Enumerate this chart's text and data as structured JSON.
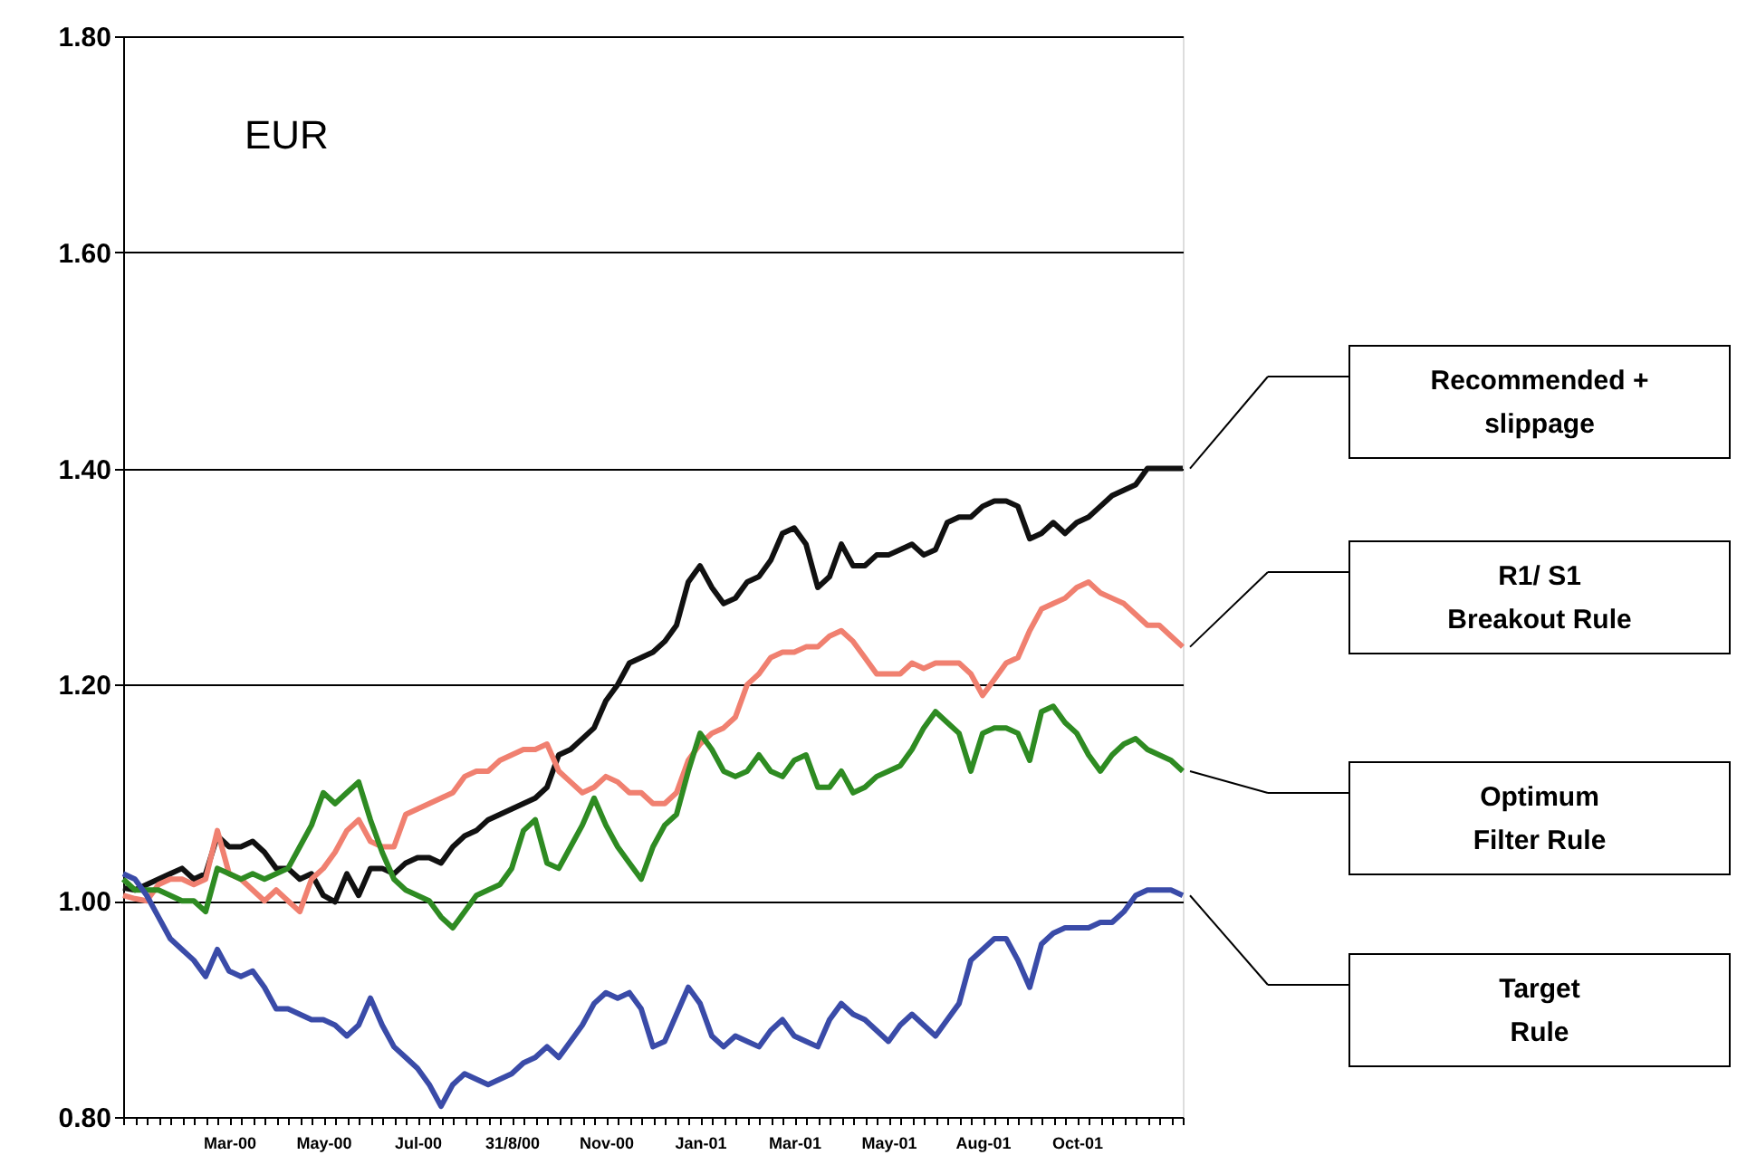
{
  "chart_data": {
    "type": "line",
    "title": "EUR",
    "categories": [
      null,
      null,
      null,
      null,
      null,
      null,
      null,
      null,
      null,
      "Mar-00",
      null,
      null,
      null,
      null,
      null,
      null,
      null,
      "May-00",
      null,
      null,
      null,
      null,
      null,
      null,
      null,
      "Jul-00",
      null,
      null,
      null,
      null,
      null,
      null,
      null,
      "31/8/00",
      null,
      null,
      null,
      null,
      null,
      null,
      null,
      "Nov-00",
      null,
      null,
      null,
      null,
      null,
      null,
      null,
      "Jan-01",
      null,
      null,
      null,
      null,
      null,
      null,
      null,
      "Mar-01",
      null,
      null,
      null,
      null,
      null,
      null,
      null,
      "May-01",
      null,
      null,
      null,
      null,
      null,
      null,
      null,
      "Aug-01",
      null,
      null,
      null,
      null,
      null,
      null,
      null,
      "Oct-01",
      null,
      null,
      null,
      null,
      null,
      null,
      null,
      null,
      null
    ],
    "series": [
      {
        "name": "Recommended +\nslippage",
        "color": "#111111",
        "values": [
          1.012,
          1.01,
          1.015,
          1.02,
          1.025,
          1.03,
          1.02,
          1.025,
          1.06,
          1.05,
          1.05,
          1.055,
          1.045,
          1.03,
          1.03,
          1.02,
          1.025,
          1.005,
          0.999,
          1.025,
          1.005,
          1.03,
          1.03,
          1.025,
          1.035,
          1.04,
          1.04,
          1.035,
          1.05,
          1.06,
          1.065,
          1.075,
          1.08,
          1.085,
          1.09,
          1.095,
          1.105,
          1.135,
          1.14,
          1.15,
          1.16,
          1.185,
          1.2,
          1.22,
          1.225,
          1.23,
          1.24,
          1.255,
          1.295,
          1.31,
          1.29,
          1.275,
          1.28,
          1.295,
          1.3,
          1.315,
          1.34,
          1.345,
          1.33,
          1.29,
          1.3,
          1.33,
          1.31,
          1.31,
          1.32,
          1.32,
          1.325,
          1.33,
          1.32,
          1.325,
          1.35,
          1.355,
          1.355,
          1.365,
          1.37,
          1.37,
          1.365,
          1.335,
          1.34,
          1.35,
          1.34,
          1.35,
          1.355,
          1.365,
          1.375,
          1.38,
          1.385,
          1.4,
          1.4,
          1.4,
          1.4
        ]
      },
      {
        "name": "R1/ S1\nBreakout Rule",
        "color": "#f08070",
        "values": [
          1.005,
          1.002,
          1.0,
          1.015,
          1.02,
          1.02,
          1.015,
          1.02,
          1.065,
          1.025,
          1.02,
          1.01,
          1.0,
          1.01,
          1.0,
          0.99,
          1.02,
          1.03,
          1.045,
          1.065,
          1.075,
          1.055,
          1.05,
          1.05,
          1.08,
          1.085,
          1.09,
          1.095,
          1.1,
          1.115,
          1.12,
          1.12,
          1.13,
          1.135,
          1.14,
          1.14,
          1.145,
          1.12,
          1.11,
          1.1,
          1.105,
          1.115,
          1.11,
          1.1,
          1.1,
          1.09,
          1.09,
          1.1,
          1.13,
          1.145,
          1.155,
          1.16,
          1.17,
          1.2,
          1.21,
          1.225,
          1.23,
          1.23,
          1.235,
          1.235,
          1.245,
          1.25,
          1.24,
          1.225,
          1.21,
          1.21,
          1.21,
          1.22,
          1.215,
          1.22,
          1.22,
          1.22,
          1.21,
          1.19,
          1.205,
          1.22,
          1.225,
          1.25,
          1.27,
          1.275,
          1.28,
          1.29,
          1.295,
          1.285,
          1.28,
          1.275,
          1.265,
          1.255,
          1.255,
          1.245,
          1.235
        ]
      },
      {
        "name": "Optimum\nFilter Rule",
        "color": "#2e8b22",
        "values": [
          1.02,
          1.01,
          1.01,
          1.01,
          1.005,
          1.0,
          1.0,
          0.99,
          1.03,
          1.025,
          1.02,
          1.025,
          1.02,
          1.025,
          1.03,
          1.05,
          1.07,
          1.1,
          1.09,
          1.1,
          1.11,
          1.075,
          1.045,
          1.02,
          1.01,
          1.005,
          1.0,
          0.985,
          0.975,
          0.99,
          1.005,
          1.01,
          1.015,
          1.03,
          1.065,
          1.075,
          1.035,
          1.03,
          1.05,
          1.07,
          1.095,
          1.07,
          1.05,
          1.035,
          1.02,
          1.05,
          1.07,
          1.08,
          1.12,
          1.155,
          1.14,
          1.12,
          1.115,
          1.12,
          1.135,
          1.12,
          1.115,
          1.13,
          1.135,
          1.105,
          1.105,
          1.12,
          1.1,
          1.105,
          1.115,
          1.12,
          1.125,
          1.14,
          1.16,
          1.175,
          1.165,
          1.155,
          1.12,
          1.155,
          1.16,
          1.16,
          1.155,
          1.13,
          1.175,
          1.18,
          1.165,
          1.155,
          1.135,
          1.12,
          1.135,
          1.145,
          1.15,
          1.14,
          1.135,
          1.13,
          1.12
        ]
      },
      {
        "name": "Target\nRule",
        "color": "#3a4ba8",
        "values": [
          1.025,
          1.02,
          1.005,
          0.985,
          0.965,
          0.955,
          0.945,
          0.93,
          0.955,
          0.935,
          0.93,
          0.935,
          0.92,
          0.9,
          0.9,
          0.895,
          0.89,
          0.89,
          0.885,
          0.875,
          0.885,
          0.91,
          0.885,
          0.865,
          0.855,
          0.845,
          0.83,
          0.81,
          0.83,
          0.84,
          0.835,
          0.83,
          0.835,
          0.84,
          0.85,
          0.855,
          0.865,
          0.855,
          0.87,
          0.885,
          0.905,
          0.915,
          0.91,
          0.915,
          0.9,
          0.865,
          0.87,
          0.895,
          0.92,
          0.905,
          0.875,
          0.865,
          0.875,
          0.87,
          0.865,
          0.88,
          0.89,
          0.875,
          0.87,
          0.865,
          0.89,
          0.905,
          0.895,
          0.89,
          0.88,
          0.87,
          0.885,
          0.895,
          0.885,
          0.875,
          0.89,
          0.905,
          0.945,
          0.955,
          0.965,
          0.965,
          0.945,
          0.92,
          0.96,
          0.97,
          0.975,
          0.975,
          0.975,
          0.98,
          0.98,
          0.99,
          1.005,
          1.01,
          1.01,
          1.01,
          1.005
        ]
      }
    ],
    "ylim": [
      0.8,
      1.8
    ],
    "yticks": [
      {
        "value": 0.8,
        "label": "0.80"
      },
      {
        "value": 1.0,
        "label": "1.00"
      },
      {
        "value": 1.2,
        "label": "1.20"
      },
      {
        "value": 1.4,
        "label": "1.40"
      },
      {
        "value": 1.6,
        "label": "1.60"
      },
      {
        "value": 1.8,
        "label": "1.80"
      }
    ],
    "grid": "y",
    "legend": false,
    "line_style": "solid",
    "marker": "none"
  }
}
